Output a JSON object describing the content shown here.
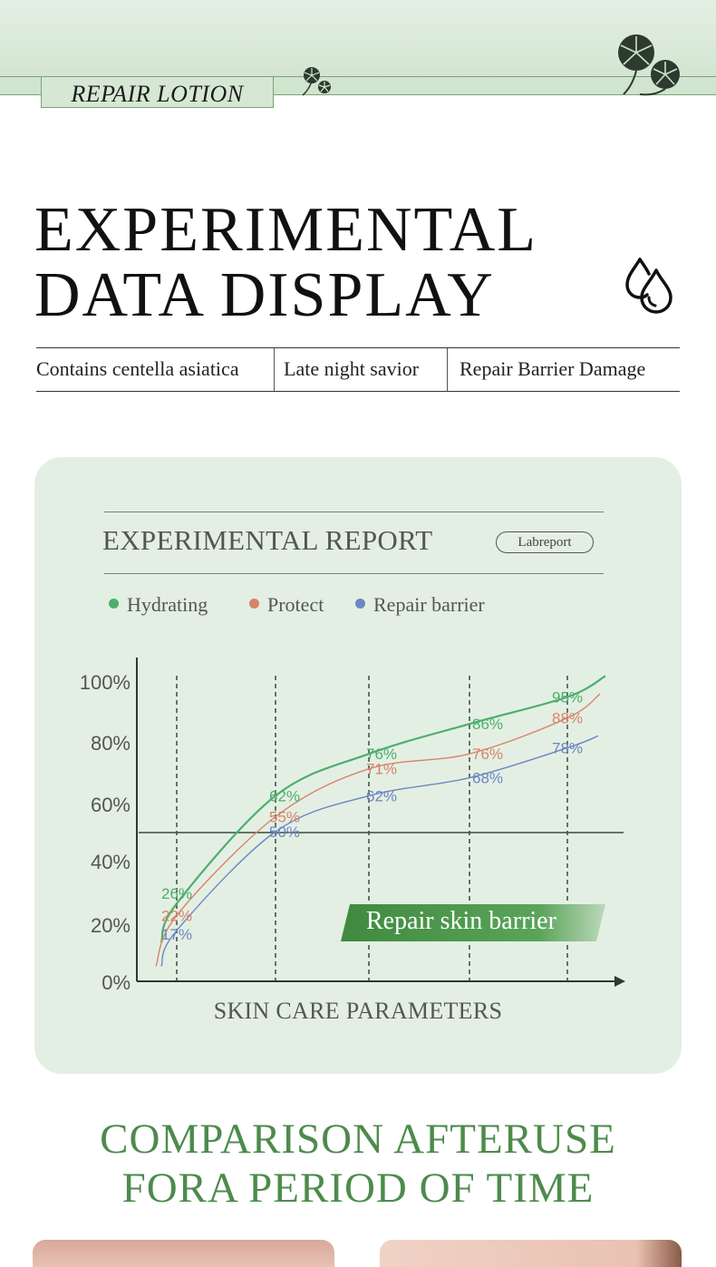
{
  "header": {
    "brand_tab": "REPAIR LOTION"
  },
  "title": {
    "line1": "EXPERIMENTAL",
    "line2": "DATA DISPLAY"
  },
  "tags": [
    "Contains centella asiatica",
    "Late night savior",
    "Repair Barrier Damage"
  ],
  "report": {
    "title": "EXPERIMENTAL REPORT",
    "badge": "Labreport"
  },
  "legend": [
    {
      "label": "Hydrating",
      "color": "#4caf6e"
    },
    {
      "label": "Protect",
      "color": "#d9826a"
    },
    {
      "label": "Repair barrier",
      "color": "#6b86c2"
    }
  ],
  "chart_data": {
    "type": "line",
    "xlabel": "SKIN CARE PARAMETERS",
    "ylabel": "",
    "ylim": [
      0,
      100
    ],
    "yticks": [
      "0%",
      "20%",
      "40%",
      "60%",
      "80%",
      "100%"
    ],
    "categories": [
      "",
      "",
      "",
      "",
      ""
    ],
    "series": [
      {
        "name": "Hydrating",
        "color": "#4caf6e",
        "values": [
          26,
          62,
          76,
          86,
          95
        ],
        "labels": [
          "26%",
          "62%",
          "76%",
          "86%",
          "95%"
        ]
      },
      {
        "name": "Protect",
        "color": "#d9826a",
        "values": [
          22,
          55,
          71,
          76,
          88
        ],
        "labels": [
          "22%",
          "55%",
          "71%",
          "76%",
          "88%"
        ]
      },
      {
        "name": "Repair barrier",
        "color": "#6b86c2",
        "values": [
          17,
          50,
          62,
          68,
          78
        ],
        "labels": [
          "17%",
          "50%",
          "62%",
          "68%",
          "78%"
        ]
      }
    ],
    "reference_line": 50,
    "grid": "vertical dashed",
    "legend_position": "top-left",
    "annotation": "Repair skin barrier"
  },
  "comparison": {
    "line1": "COMPARISON AFTERUSE",
    "line2": "FORA PERIOD OF TIME"
  },
  "colors": {
    "accent_green": "#4d8b4c",
    "card_bg": "#e4efe3",
    "band_bg": "#d6e8d4"
  }
}
